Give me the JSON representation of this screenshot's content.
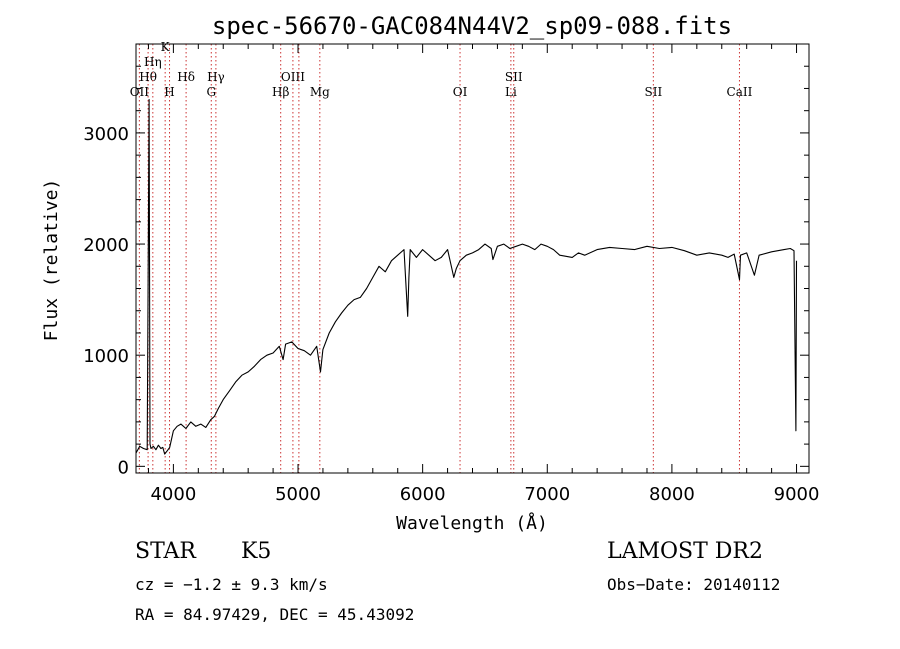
{
  "chart_data": {
    "type": "line",
    "title": "spec-56670-GAC084N44V2_sp09-088.fits",
    "xlabel": "Wavelength (Å)",
    "ylabel": "Flux (relative)",
    "xlim": [
      3700,
      9100
    ],
    "ylim": [
      -60,
      3800
    ],
    "x_ticks": [
      4000,
      5000,
      6000,
      7000,
      8000,
      9000
    ],
    "x_tick_labels": [
      "4000",
      "5000",
      "6000",
      "7000",
      "8000",
      "9000"
    ],
    "y_ticks": [
      0,
      1000,
      2000,
      3000
    ],
    "y_tick_labels": [
      "0",
      "1000",
      "2000",
      "3000"
    ],
    "series": [
      {
        "color": "#000000",
        "x": [
          3700,
          3730,
          3760,
          3790,
          3805,
          3812,
          3820,
          3830,
          3840,
          3860,
          3880,
          3900,
          3915,
          3930,
          3950,
          3970,
          4000,
          4030,
          4060,
          4100,
          4140,
          4180,
          4220,
          4260,
          4300,
          4330,
          4360,
          4400,
          4450,
          4500,
          4550,
          4600,
          4650,
          4700,
          4750,
          4800,
          4850,
          4880,
          4900,
          4950,
          5000,
          5050,
          5100,
          5150,
          5180,
          5200,
          5250,
          5300,
          5350,
          5400,
          5450,
          5500,
          5550,
          5600,
          5650,
          5700,
          5750,
          5800,
          5850,
          5880,
          5890,
          5900,
          5950,
          6000,
          6050,
          6100,
          6150,
          6200,
          6250,
          6270,
          6300,
          6350,
          6400,
          6450,
          6500,
          6550,
          6564,
          6600,
          6650,
          6700,
          6750,
          6800,
          6850,
          6900,
          6950,
          7000,
          7050,
          7100,
          7150,
          7200,
          7250,
          7300,
          7400,
          7500,
          7600,
          7700,
          7800,
          7900,
          8000,
          8100,
          8200,
          8300,
          8400,
          8450,
          8500,
          8542,
          8550,
          8600,
          8662,
          8700,
          8800,
          8900,
          8950,
          8980,
          8995,
          9000
        ],
        "y": [
          120,
          180,
          160,
          150,
          3300,
          200,
          160,
          170,
          180,
          150,
          190,
          160,
          170,
          110,
          140,
          170,
          320,
          360,
          380,
          340,
          400,
          360,
          380,
          350,
          420,
          450,
          520,
          600,
          680,
          760,
          820,
          850,
          900,
          960,
          1000,
          1020,
          1080,
          960,
          1100,
          1120,
          1060,
          1040,
          1000,
          1080,
          850,
          1050,
          1200,
          1300,
          1380,
          1450,
          1500,
          1520,
          1600,
          1700,
          1800,
          1750,
          1850,
          1900,
          1950,
          1350,
          1700,
          1950,
          1880,
          1950,
          1900,
          1850,
          1880,
          1950,
          1700,
          1780,
          1850,
          1900,
          1920,
          1950,
          2000,
          1960,
          1860,
          1980,
          2000,
          1960,
          1980,
          2000,
          1980,
          1950,
          2000,
          1980,
          1950,
          1900,
          1890,
          1880,
          1920,
          1900,
          1950,
          1970,
          1960,
          1950,
          1980,
          1960,
          1970,
          1940,
          1900,
          1920,
          1900,
          1880,
          1910,
          1680,
          1900,
          1920,
          1720,
          1900,
          1930,
          1950,
          1960,
          1940,
          320,
          1850
        ]
      }
    ],
    "lines": [
      {
        "x": 3727,
        "label": "OII"
      },
      {
        "x": 3797,
        "label": "Hθ"
      },
      {
        "x": 3835,
        "label": "Hη"
      },
      {
        "x": 3934,
        "label": "K"
      },
      {
        "x": 3969,
        "label": "H"
      },
      {
        "x": 4102,
        "label": "Hδ"
      },
      {
        "x": 4304,
        "label": "G"
      },
      {
        "x": 4341,
        "label": "Hγ"
      },
      {
        "x": 4861,
        "label": "Hβ"
      },
      {
        "x": 4959,
        "label": "OIII"
      },
      {
        "x": 5007,
        "label": ""
      },
      {
        "x": 5175,
        "label": "Mg"
      },
      {
        "x": 6300,
        "label": "OI"
      },
      {
        "x": 6708,
        "label": "Li"
      },
      {
        "x": 6731,
        "label": "SII"
      },
      {
        "x": 7851,
        "label": "SII"
      },
      {
        "x": 8542,
        "label": "CaII"
      }
    ],
    "grid": false,
    "legend": "none"
  },
  "info": {
    "class_label": "STAR",
    "subclass_label": "K5",
    "survey_label": "LAMOST DR2",
    "redshift_line": "cz = −1.2 ± 9.3 km/s",
    "obsdate_line": "Obs−Date: 20140112",
    "coords_line": "RA =  84.97429, DEC =  45.43092"
  },
  "colors": {
    "spectrum": "#000000",
    "line_marker": "#cc3333"
  }
}
